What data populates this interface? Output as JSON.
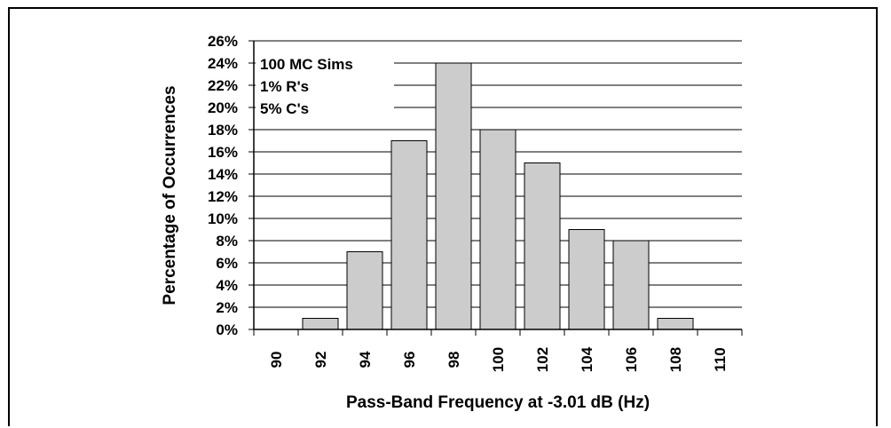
{
  "chart_data": {
    "type": "bar",
    "categories": [
      "90",
      "92",
      "94",
      "96",
      "98",
      "100",
      "102",
      "104",
      "106",
      "108",
      "110"
    ],
    "values": [
      0,
      1,
      7,
      17,
      24,
      18,
      15,
      9,
      8,
      1,
      0
    ],
    "xlabel": "Pass-Band Frequency at -3.01 dB (Hz)",
    "ylabel": "Percentage of Occurrences",
    "ylim": [
      0,
      26
    ],
    "ytick_step": 2,
    "ytick_labels": [
      "0%",
      "2%",
      "4%",
      "6%",
      "8%",
      "10%",
      "12%",
      "14%",
      "16%",
      "18%",
      "20%",
      "22%",
      "24%",
      "26%"
    ],
    "annotations": [
      "100 MC Sims",
      "1% R's",
      "5% C's"
    ],
    "grid": true,
    "bar_color": "#cccccc"
  }
}
